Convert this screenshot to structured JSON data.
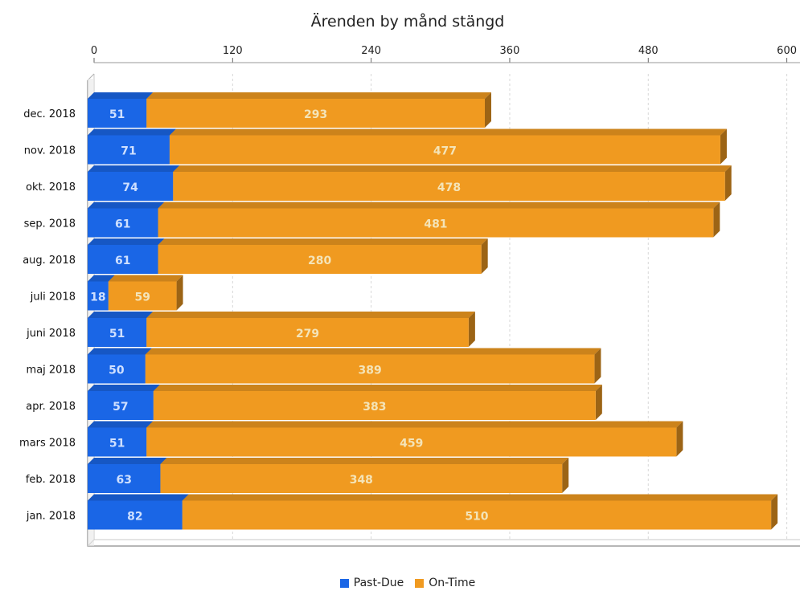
{
  "chart_data": {
    "type": "bar",
    "orientation": "horizontal",
    "stacked": true,
    "title": "Ärenden by månd stängd",
    "categories": [
      "dec. 2018",
      "nov. 2018",
      "okt. 2018",
      "sep. 2018",
      "aug. 2018",
      "juli 2018",
      "juni 2018",
      "maj 2018",
      "apr. 2018",
      "mars 2018",
      "feb. 2018",
      "jan. 2018"
    ],
    "series": [
      {
        "name": "Past-Due",
        "color": "#1a66e6",
        "values": [
          51,
          71,
          74,
          61,
          61,
          18,
          51,
          50,
          57,
          51,
          63,
          82
        ]
      },
      {
        "name": "On-Time",
        "color": "#f09a20",
        "values": [
          293,
          477,
          478,
          481,
          280,
          59,
          279,
          389,
          383,
          459,
          348,
          510
        ]
      }
    ],
    "value_axis": {
      "position": "top",
      "min": 0,
      "max": 600,
      "ticks": [
        0,
        120,
        240,
        360,
        480,
        600
      ]
    },
    "grid": true,
    "legend": {
      "position": "bottom",
      "entries": [
        "Past-Due",
        "On-Time"
      ]
    }
  }
}
